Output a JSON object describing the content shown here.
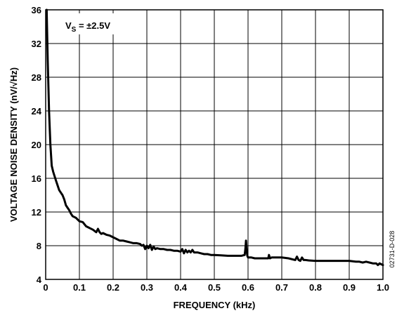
{
  "chart_data": {
    "type": "line",
    "xlabel": "FREQUENCY (kHz)",
    "ylabel": "VOLTAGE NOISE DENSITY (nV/√Hz)",
    "xlim": [
      0,
      1.0
    ],
    "ylim": [
      4,
      36
    ],
    "xticks": [
      "0",
      "0.1",
      "0.2",
      "0.3",
      "0.4",
      "0.5",
      "0.6",
      "0.7",
      "0.8",
      "0.9",
      "1.0"
    ],
    "yticks": [
      "4",
      "8",
      "12",
      "16",
      "20",
      "24",
      "28",
      "32",
      "36"
    ],
    "grid": true,
    "annotation": {
      "main": "V",
      "sub": "S",
      "rest": " = ±2.5V"
    },
    "doc_id": "02731-D-028",
    "series": [
      {
        "color": "#000000",
        "x": [
          0.003,
          0.006,
          0.01,
          0.014,
          0.018,
          0.022,
          0.026,
          0.03,
          0.035,
          0.04,
          0.045,
          0.05,
          0.055,
          0.06,
          0.065,
          0.07,
          0.075,
          0.08,
          0.085,
          0.09,
          0.1,
          0.11,
          0.12,
          0.13,
          0.14,
          0.15,
          0.155,
          0.16,
          0.165,
          0.17,
          0.18,
          0.19,
          0.2,
          0.21,
          0.22,
          0.23,
          0.24,
          0.25,
          0.26,
          0.27,
          0.28,
          0.285,
          0.29,
          0.295,
          0.3,
          0.305,
          0.31,
          0.315,
          0.32,
          0.325,
          0.33,
          0.34,
          0.35,
          0.36,
          0.37,
          0.38,
          0.39,
          0.4,
          0.405,
          0.41,
          0.415,
          0.42,
          0.425,
          0.43,
          0.435,
          0.44,
          0.45,
          0.46,
          0.47,
          0.48,
          0.49,
          0.5,
          0.52,
          0.54,
          0.56,
          0.58,
          0.59,
          0.592,
          0.594,
          0.596,
          0.598,
          0.6,
          0.61,
          0.62,
          0.63,
          0.64,
          0.65,
          0.66,
          0.662,
          0.665,
          0.67,
          0.68,
          0.69,
          0.7,
          0.72,
          0.74,
          0.745,
          0.75,
          0.755,
          0.76,
          0.765,
          0.77,
          0.78,
          0.8,
          0.85,
          0.9,
          0.92,
          0.93,
          0.94,
          0.95,
          0.96,
          0.97,
          0.98,
          0.985,
          0.99,
          0.995,
          1.0
        ],
        "y": [
          36,
          30,
          24,
          20,
          17.5,
          16.8,
          16.3,
          15.8,
          15.2,
          14.6,
          14.3,
          14.0,
          13.5,
          12.8,
          12.5,
          12.2,
          11.8,
          11.5,
          11.4,
          11.3,
          10.9,
          10.8,
          10.3,
          10.1,
          9.9,
          9.6,
          10.0,
          9.6,
          9.4,
          9.5,
          9.3,
          9.2,
          9.0,
          8.8,
          8.6,
          8.6,
          8.5,
          8.4,
          8.3,
          8.3,
          8.2,
          8.0,
          8.1,
          7.6,
          8.0,
          7.7,
          8.1,
          7.5,
          7.9,
          7.6,
          7.7,
          7.6,
          7.6,
          7.5,
          7.5,
          7.4,
          7.4,
          7.3,
          7.6,
          7.1,
          7.5,
          7.2,
          7.4,
          7.2,
          7.5,
          7.2,
          7.2,
          7.1,
          7.0,
          7.0,
          6.9,
          6.9,
          6.85,
          6.8,
          6.8,
          6.8,
          6.9,
          7.6,
          8.6,
          7.4,
          6.8,
          6.6,
          6.6,
          6.5,
          6.5,
          6.5,
          6.5,
          6.5,
          6.9,
          6.5,
          6.6,
          6.6,
          6.6,
          6.6,
          6.5,
          6.3,
          6.7,
          6.3,
          6.2,
          6.6,
          6.3,
          6.3,
          6.25,
          6.2,
          6.2,
          6.2,
          6.1,
          6.1,
          6.0,
          6.1,
          6.0,
          5.9,
          5.9,
          5.7,
          5.9,
          5.8,
          5.7
        ]
      }
    ]
  }
}
